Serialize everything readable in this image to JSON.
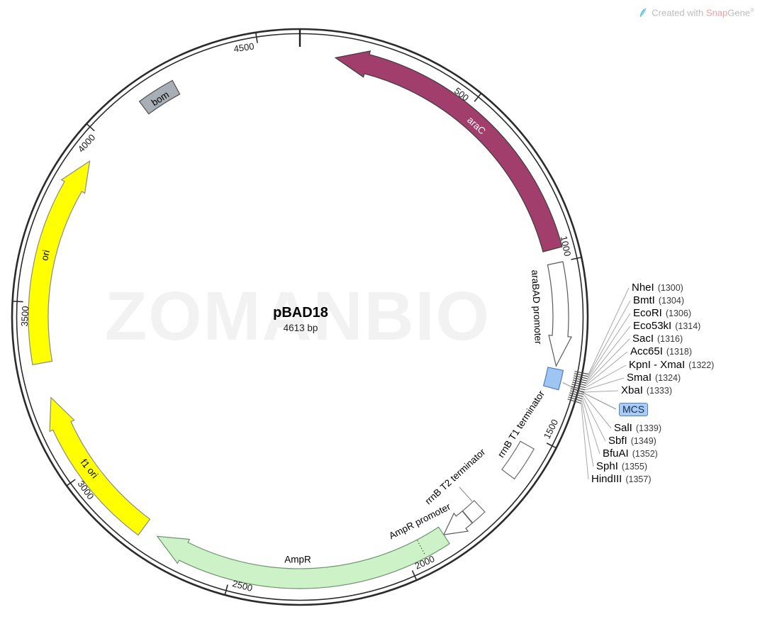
{
  "watermark": {
    "text": "ZOMANBIO"
  },
  "credit": {
    "created_with": "Created with",
    "brand": "Snap",
    "brand2": "Gene",
    "reg": "®"
  },
  "plasmid": {
    "name": "pBAD18",
    "length_label": "4613 bp",
    "length_bp": 4613
  },
  "map": {
    "origin_bp": 0,
    "ticks": [
      {
        "bp": 500,
        "label": "500"
      },
      {
        "bp": 1000,
        "label": "1000"
      },
      {
        "bp": 1500,
        "label": "1500"
      },
      {
        "bp": 2000,
        "label": "2000"
      },
      {
        "bp": 2500,
        "label": "2500"
      },
      {
        "bp": 3000,
        "label": "3000"
      },
      {
        "bp": 3500,
        "label": "3500"
      },
      {
        "bp": 4000,
        "label": "4000"
      },
      {
        "bp": 4500,
        "label": "4500"
      }
    ],
    "features": [
      {
        "label": "araC",
        "shape": "arrow",
        "start": 100,
        "end": 961,
        "direction": "ccw",
        "fill": "#a13e6c",
        "stroke": "#3d3d3d",
        "label_color": "#ffffff"
      },
      {
        "label": "araBAD promoter",
        "shape": "arrow",
        "start": 1001,
        "end": 1292,
        "direction": "cw",
        "fill": "#ffffff",
        "stroke": "#5a5a5a",
        "label_color": "#000000"
      },
      {
        "label": "MCS",
        "shape": "box",
        "start": 1300,
        "end": 1355,
        "fill": "#9fc6f2",
        "stroke": "#4a7ebb",
        "label_color": null
      },
      {
        "label": "rrnB T1 terminator",
        "shape": "box",
        "start": 1530,
        "end": 1628,
        "fill": "#ffffff",
        "stroke": "#6e6e6e",
        "label_color": "#000000"
      },
      {
        "label": "rrnB T2 terminator",
        "shape": "box",
        "start": 1749,
        "end": 1794,
        "fill": "#ffffff",
        "stroke": "#6e6e6e",
        "label_color": "#000000"
      },
      {
        "label": "AmpR promoter",
        "shape": "arrow",
        "start": 1795,
        "end": 1878,
        "direction": "cw",
        "fill": "#ffffff",
        "stroke": "#5a5a5a",
        "label_color": "#000000"
      },
      {
        "label": "AmpR",
        "shape": "arrow",
        "start": 1878,
        "end": 2730,
        "direction": "cw",
        "fill": "#cdf2c8",
        "stroke": "#6e936e",
        "label_color": "#000000"
      },
      {
        "label": "f1 ori",
        "shape": "arrow",
        "start": 2775,
        "end": 3230,
        "direction": "cw",
        "fill": "#ffff00",
        "stroke": "#8a8a8a",
        "label_color": "#000000"
      },
      {
        "label": "ori",
        "shape": "arrow",
        "start": 3330,
        "end": 3928,
        "direction": "cw",
        "fill": "#ffff00",
        "stroke": "#8a8a8a",
        "label_color": "#000000"
      },
      {
        "label": "bom",
        "shape": "box",
        "start": 4143,
        "end": 4250,
        "fill": "#a8aeb6",
        "stroke": "#4f4f4f",
        "label_color": "#000000"
      }
    ],
    "ampr_divider_bp": 1951
  },
  "sites": {
    "mcs_label": "MCS",
    "list": [
      {
        "name": "NheI",
        "loc": "(1300)",
        "bp": 1300
      },
      {
        "name": "BmtI",
        "loc": "(1304)",
        "bp": 1304
      },
      {
        "name": "EcoRI",
        "loc": "(1306)",
        "bp": 1306
      },
      {
        "name": "Eco53kI",
        "loc": "(1314)",
        "bp": 1314
      },
      {
        "name": "SacI",
        "loc": "(1316)",
        "bp": 1316
      },
      {
        "name": "Acc65I",
        "loc": "(1318)",
        "bp": 1318
      },
      {
        "name": "KpnI - XmaI",
        "loc": "(1322)",
        "bp": 1322
      },
      {
        "name": "SmaI",
        "loc": "(1324)",
        "bp": 1324
      },
      {
        "name": "XbaI",
        "loc": "(1333)",
        "bp": 1333
      },
      {
        "name": "SalI",
        "loc": "(1339)",
        "bp": 1339
      },
      {
        "name": "SbfI",
        "loc": "(1349)",
        "bp": 1349
      },
      {
        "name": "BfuAI",
        "loc": "(1352)",
        "bp": 1352
      },
      {
        "name": "SphI",
        "loc": "(1355)",
        "bp": 1355
      },
      {
        "name": "HindIII",
        "loc": "(1357)",
        "bp": 1357
      }
    ]
  }
}
